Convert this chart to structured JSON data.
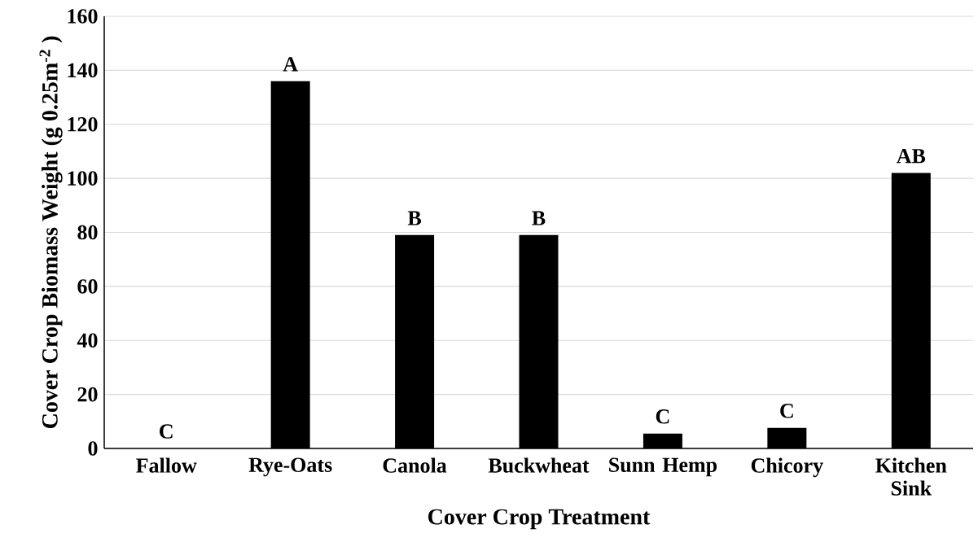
{
  "chart_data": {
    "type": "bar",
    "xlabel": "Cover Crop Treatment",
    "ylabel": "Cover Crop Biomass Weight (g 0.25m$^{-2}$ )",
    "categories": [
      "Fallow",
      "Rye-Oats",
      "Canola",
      "Buckwheat",
      "Sunn Hemp",
      "Chicory",
      "Kitchen Sink"
    ],
    "values": [
      0,
      136,
      79,
      79,
      5.5,
      7.6,
      102
    ],
    "color": "#000000",
    "ylim": [
      0,
      160
    ],
    "yticks": [
      0,
      20,
      40,
      60,
      80,
      100,
      120,
      140,
      160
    ],
    "grid": "y",
    "annotations": [
      {
        "text": "C",
        "x": "Fallow",
        "y": 0
      },
      {
        "text": "A",
        "x": "Rye-Oats",
        "y": 136
      },
      {
        "text": "B",
        "x": "Canola",
        "y": 79
      },
      {
        "text": "B",
        "x": "Buckwheat",
        "y": 79
      },
      {
        "text": "C",
        "x": "Sunn Hemp",
        "y": 5.5
      },
      {
        "text": "C",
        "x": "Chicory",
        "y": 7.6
      },
      {
        "text": "AB",
        "x": "Kitchen Sink",
        "y": 102
      }
    ]
  }
}
